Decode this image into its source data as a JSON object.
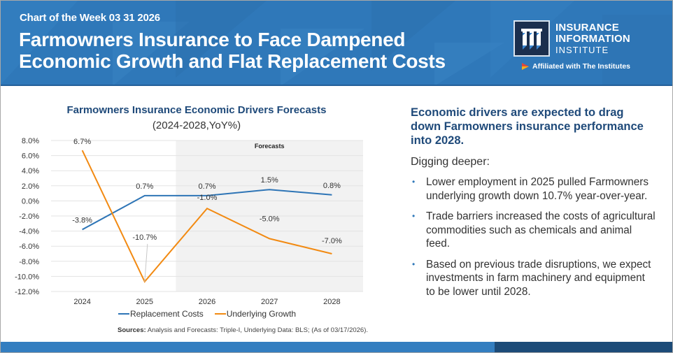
{
  "header": {
    "eyebrow": "Chart of the Week 03 31 2026",
    "title_line1": "Farmowners Insurance to Face Dampened",
    "title_line2": "Economic Growth and Flat Replacement Costs",
    "logo": {
      "line1": "INSURANCE",
      "line2": "INFORMATION",
      "line3": "INSTITUTE",
      "affiliation": "Affiliated with The Institutes"
    },
    "colors": {
      "header_bg": "#2f78b9",
      "logo_bg": "#1b2f4e"
    }
  },
  "chart_data": {
    "type": "line",
    "title": "Farmowners Insurance Economic Drivers Forecasts",
    "subtitle": "(2024-2028,YoY%)",
    "categories": [
      "2024",
      "2025",
      "2026",
      "2027",
      "2028"
    ],
    "series": [
      {
        "name": "Replacement Costs",
        "color": "#2e75b6",
        "values": [
          -3.8,
          0.7,
          0.7,
          1.5,
          0.8
        ],
        "labels": [
          "-3.8%",
          "0.7%",
          "0.7%",
          "1.5%",
          "0.8%"
        ]
      },
      {
        "name": "Underlying Growth",
        "color": "#f28a12",
        "values": [
          6.7,
          -10.7,
          -1.0,
          -5.0,
          -7.0
        ],
        "labels": [
          "6.7%",
          "-10.7%",
          "-1.0%",
          "-5.0%",
          "-7.0%"
        ]
      }
    ],
    "ylim": [
      -12,
      8
    ],
    "yticks": [
      8,
      6,
      4,
      2,
      0,
      -2,
      -4,
      -6,
      -8,
      -10,
      -12
    ],
    "ytick_labels": [
      "8.0%",
      "6.0%",
      "4.0%",
      "2.0%",
      "0.0%",
      "-2.0%",
      "-4.0%",
      "-6.0%",
      "-8.0%",
      "-10.0%",
      "-12.0%"
    ],
    "grid": true,
    "forecast_region": {
      "label": "Forecasts",
      "from_category": "2026",
      "to_category": "2028"
    },
    "legend_position": "bottom",
    "xlabel": "",
    "ylabel": ""
  },
  "sources": {
    "label": "Sources:",
    "text": " Analysis and Forecasts: Triple-I, Underlying Data: BLS; (As of 03/17/2026)."
  },
  "commentary": {
    "headline": "Economic drivers are expected to drag down Farmowners insurance performance into 2028.",
    "intro": "Digging deeper:",
    "bullets": [
      "Lower employment in 2025 pulled Farmowners underlying growth down 10.7% year-over-year.",
      "Trade barriers increased the costs of agricultural commodities such as chemicals and animal feed.",
      "Based on previous trade disruptions, we expect investments in farm machinery and equipment to be lower until 2028."
    ]
  }
}
